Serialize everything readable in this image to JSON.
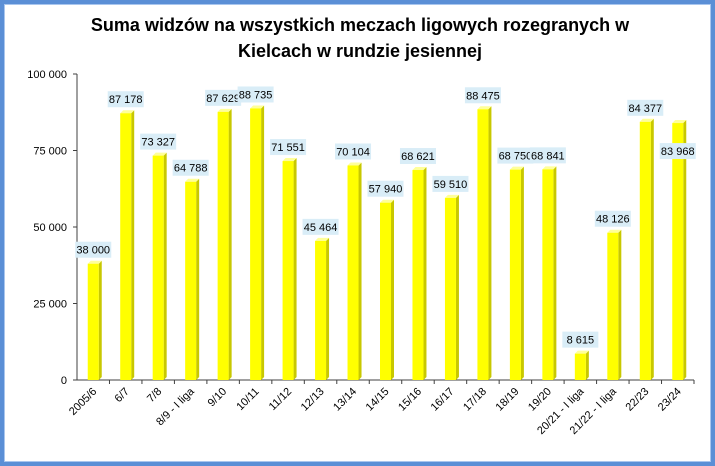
{
  "chart_data": {
    "type": "bar",
    "title": "Suma widzów na wszystkich meczach ligowych rozegranych w Kielcach w rundzie jesiennej",
    "xlabel": "",
    "ylabel": "",
    "ylim": [
      0,
      100000
    ],
    "yticks": [
      0,
      25000,
      50000,
      75000,
      100000
    ],
    "ytick_labels": [
      "0",
      "25 000",
      "50 000",
      "75 000",
      "100 000"
    ],
    "grid": false,
    "legend": "none",
    "categories": [
      "2005/6",
      "6/7",
      "7/8",
      "8/9 - I liga",
      "9/10",
      "10/11",
      "11/12",
      "12/13",
      "13/14",
      "14/15",
      "15/16",
      "16/17",
      "17/18",
      "18/19",
      "19/20",
      "20/21 - I liga",
      "21/22 - I liga",
      "22/23",
      "23/24"
    ],
    "values": [
      38000,
      87178,
      73327,
      64788,
      87629,
      88735,
      71551,
      45464,
      70104,
      57940,
      68621,
      59510,
      88475,
      68750,
      68841,
      8615,
      48126,
      84377,
      83968
    ],
    "value_labels": [
      "38 000",
      "87 178",
      "73 327",
      "64 788",
      "87 629",
      "88 735",
      "71 551",
      "45 464",
      "70 104",
      "57 940",
      "68 621",
      "59 510",
      "88 475",
      "68 750",
      "68 841",
      "8 615",
      "48 126",
      "84 377",
      "83 968"
    ],
    "colors": {
      "bar": "#ffff00",
      "bar_shade": "#c8c800",
      "label_bg": "#d9edf7",
      "frame": "#5b8fd6",
      "axis": "#404040"
    }
  }
}
